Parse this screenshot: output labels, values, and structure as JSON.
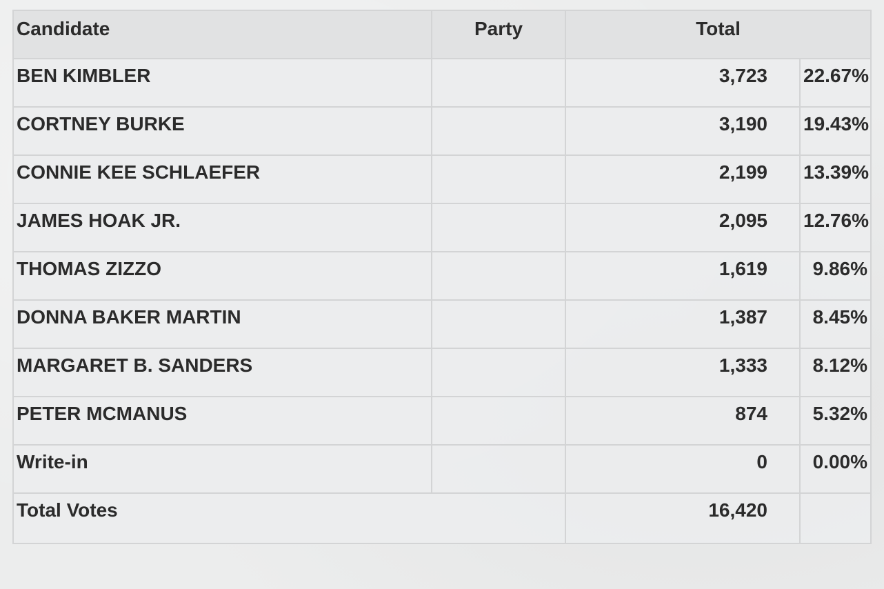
{
  "headers": {
    "candidate": "Candidate",
    "party": "Party",
    "total": "Total"
  },
  "rows": [
    {
      "candidate": "BEN KIMBLER",
      "party": "",
      "votes": "3,723",
      "percent": "22.67%"
    },
    {
      "candidate": "CORTNEY BURKE",
      "party": "",
      "votes": "3,190",
      "percent": "19.43%"
    },
    {
      "candidate": "CONNIE KEE SCHLAEFER",
      "party": "",
      "votes": "2,199",
      "percent": "13.39%"
    },
    {
      "candidate": "JAMES HOAK JR.",
      "party": "",
      "votes": "2,095",
      "percent": "12.76%"
    },
    {
      "candidate": "THOMAS ZIZZO",
      "party": "",
      "votes": "1,619",
      "percent": "9.86%"
    },
    {
      "candidate": "DONNA BAKER MARTIN",
      "party": "",
      "votes": "1,387",
      "percent": "8.45%"
    },
    {
      "candidate": "MARGARET B. SANDERS",
      "party": "",
      "votes": "1,333",
      "percent": "8.12%"
    },
    {
      "candidate": "PETER MCMANUS",
      "party": "",
      "votes": "874",
      "percent": "5.32%"
    },
    {
      "candidate": "Write-in",
      "party": "",
      "votes": "0",
      "percent": "0.00%"
    }
  ],
  "footer": {
    "label": "Total Votes",
    "votes": "16,420",
    "percent": ""
  }
}
